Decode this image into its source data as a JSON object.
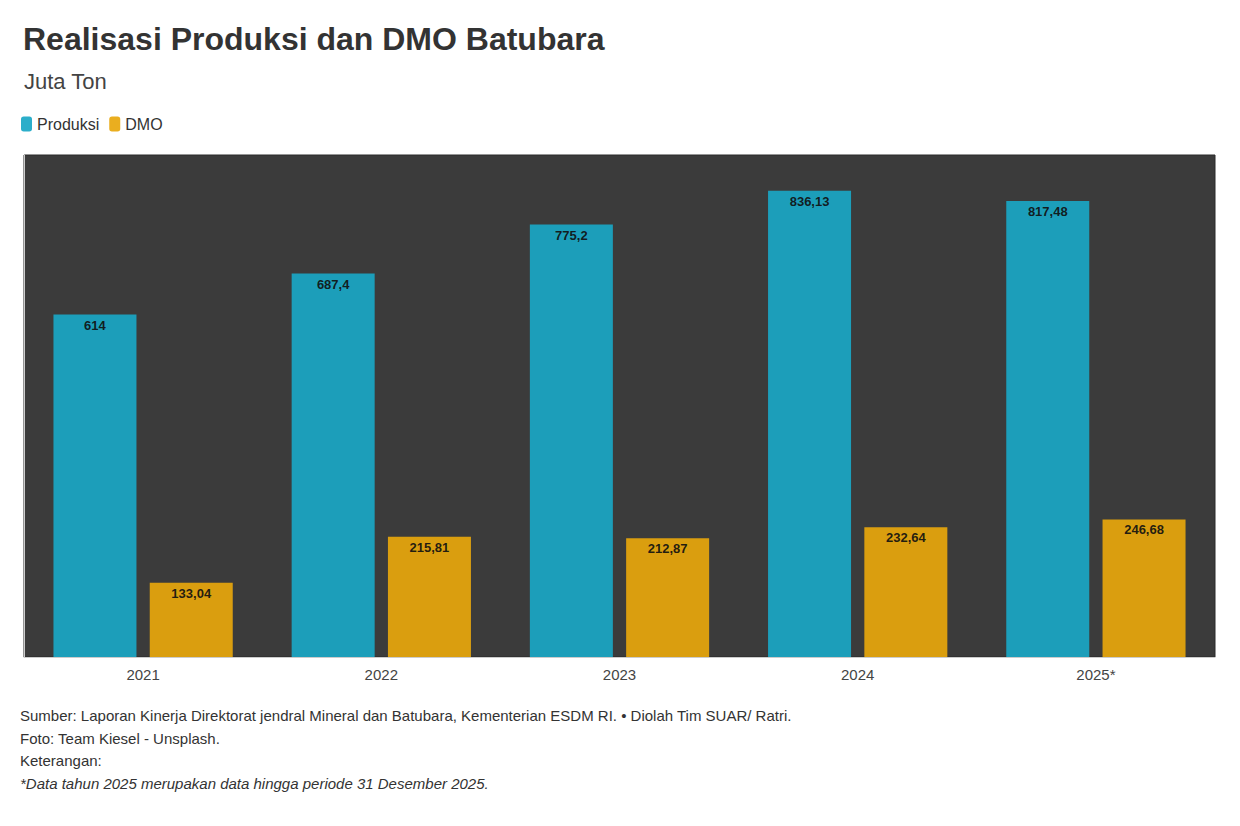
{
  "chart_data": {
    "type": "bar",
    "title": "Realisasi Produksi dan DMO Batubara",
    "subtitle": "Juta Ton",
    "categories": [
      "2021",
      "2022",
      "2023",
      "2024",
      "2025*"
    ],
    "series": [
      {
        "name": "Produksi",
        "color": "#1aa7c6",
        "values": [
          614,
          687.4,
          775.2,
          836.13,
          817.48
        ],
        "value_labels": [
          "614",
          "687,4",
          "775,2",
          "836,13",
          "817,48"
        ]
      },
      {
        "name": "DMO",
        "color": "#e8a70c",
        "values": [
          133.04,
          215.81,
          212.87,
          232.64,
          246.68
        ],
        "value_labels": [
          "133,04",
          "215,81",
          "212,87",
          "232,64",
          "246,68"
        ]
      }
    ],
    "ylim": [
      0,
      900
    ],
    "grid": false,
    "legend": "top-left",
    "data_labels": true,
    "tick_labels": "x",
    "footnotes": [
      "Sumber: Laporan Kinerja Direktorat jendral Mineral dan Batubara, Kementerian ESDM RI. • Diolah Tim SUAR/ Ratri.",
      "Foto: Team Kiesel - Unsplash.",
      "Keterangan:",
      "*Data tahun 2025 merupakan data hingga periode 31 Desember 2025."
    ]
  }
}
